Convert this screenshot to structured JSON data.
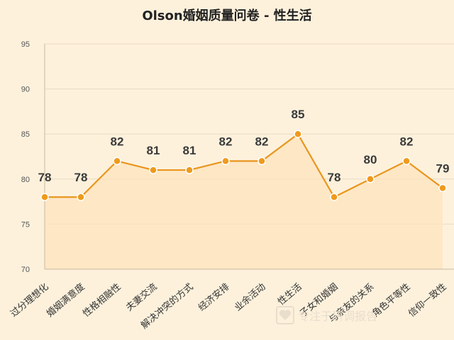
{
  "chart_data": {
    "type": "area",
    "title": "Olson婚姻质量问卷 - 性生活",
    "categories": [
      "过分理想化",
      "婚姻满意度",
      "性格相融性",
      "夫妻交流",
      "解决冲突的方式",
      "经济安排",
      "业余活动",
      "性生活",
      "子女和婚姻",
      "与亲友的关系",
      "角色平等性",
      "信仰一致性"
    ],
    "values": [
      78,
      78,
      82,
      81,
      81,
      82,
      82,
      85,
      78,
      80,
      82,
      79
    ],
    "yticks": [
      70,
      75,
      80,
      85,
      90,
      95
    ],
    "ylim": [
      70,
      95
    ],
    "xlabel": "",
    "ylabel": "",
    "grid": true,
    "colors": {
      "line": "#e8961e",
      "fill": "#fde3bd",
      "point": "#ef9a1c",
      "grid": "#eadbc4",
      "axis": "#c9b9a0"
    }
  },
  "watermark": {
    "text": "专注于研调报告",
    "icon_name": "heart-logo-icon"
  }
}
